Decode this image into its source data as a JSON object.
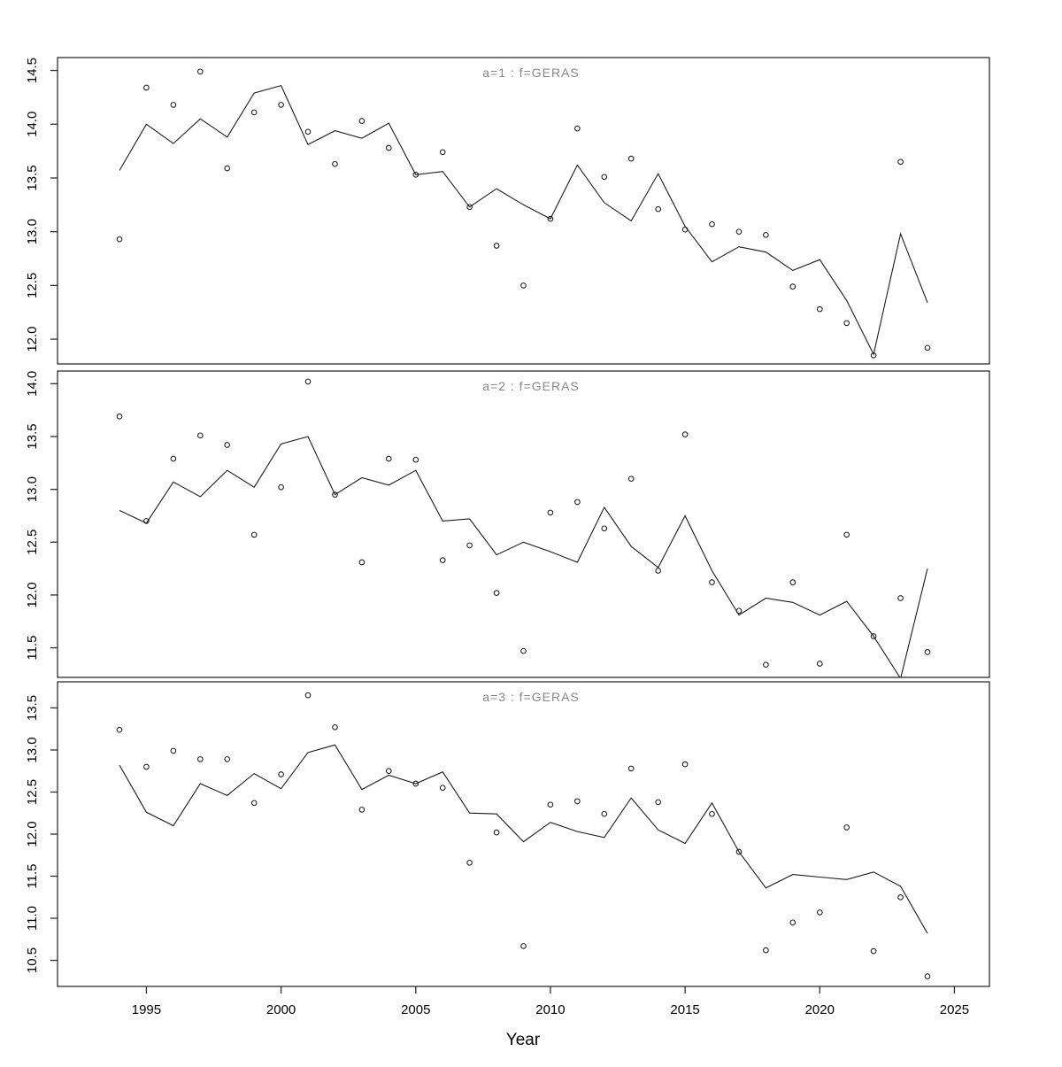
{
  "chart_data": {
    "type": "line",
    "layout_hint": "three vertically stacked panels sharing one x axis, open-circle observations with fitted line, R-style plot",
    "xlabel": "Year",
    "xlim": [
      1991.7,
      2026.3
    ],
    "xticks": [
      1995,
      2000,
      2005,
      2010,
      2015,
      2020,
      2025
    ],
    "point_marker": "open-circle",
    "grid": "off",
    "x": [
      1994,
      1995,
      1996,
      1997,
      1998,
      1999,
      2000,
      2001,
      2002,
      2003,
      2004,
      2005,
      2006,
      2007,
      2008,
      2009,
      2010,
      2011,
      2012,
      2013,
      2014,
      2015,
      2016,
      2017,
      2018,
      2019,
      2020,
      2021,
      2022,
      2023,
      2024
    ],
    "panels": [
      {
        "title": "a=1 : f=GERAS",
        "ylim": [
          11.77,
          14.62
        ],
        "yticks": [
          12.0,
          12.5,
          13.0,
          13.5,
          14.0,
          14.5
        ],
        "series": [
          {
            "name": "observed-points",
            "type": "scatter",
            "values": [
              12.93,
              14.34,
              14.18,
              14.49,
              13.59,
              14.11,
              14.18,
              13.93,
              13.63,
              14.03,
              13.78,
              13.53,
              13.74,
              13.23,
              12.87,
              12.5,
              13.12,
              13.96,
              13.51,
              13.68,
              13.21,
              13.02,
              13.07,
              13.0,
              12.97,
              12.49,
              12.28,
              12.15,
              11.85,
              13.65,
              11.92
            ]
          },
          {
            "name": "fitted-line",
            "type": "line",
            "values": [
              13.57,
              14.0,
              13.82,
              14.05,
              13.88,
              14.29,
              14.36,
              13.81,
              13.94,
              13.87,
              14.01,
              13.53,
              13.56,
              13.23,
              13.4,
              13.25,
              13.12,
              13.62,
              13.27,
              13.1,
              13.54,
              13.05,
              12.72,
              12.86,
              12.81,
              12.64,
              12.74,
              12.36,
              11.86,
              12.98,
              12.34
            ]
          }
        ]
      },
      {
        "title": "a=2 : f=GERAS",
        "ylim": [
          11.22,
          14.12
        ],
        "yticks": [
          11.5,
          12.0,
          12.5,
          13.0,
          13.5,
          14.0
        ],
        "series": [
          {
            "name": "observed-points",
            "type": "scatter",
            "values": [
              13.69,
              12.7,
              13.29,
              13.51,
              13.42,
              12.57,
              13.02,
              14.02,
              12.95,
              12.31,
              13.29,
              13.28,
              12.33,
              12.47,
              12.02,
              11.47,
              12.78,
              12.88,
              12.63,
              13.1,
              12.23,
              13.52,
              12.12,
              11.85,
              11.34,
              12.12,
              11.35,
              12.57,
              11.61,
              11.97,
              11.46
            ]
          },
          {
            "name": "fitted-line",
            "type": "line",
            "values": [
              12.8,
              12.68,
              13.07,
              12.93,
              13.18,
              13.02,
              13.43,
              13.5,
              12.95,
              13.11,
              13.04,
              13.18,
              12.7,
              12.72,
              12.38,
              12.5,
              12.41,
              12.31,
              12.83,
              12.46,
              12.26,
              12.75,
              12.23,
              11.81,
              11.97,
              11.93,
              11.81,
              11.94,
              11.61,
              11.21,
              12.25
            ]
          }
        ]
      },
      {
        "title": "a=3 : f=GERAS",
        "ylim": [
          10.19,
          13.81
        ],
        "yticks": [
          10.5,
          11.0,
          11.5,
          12.0,
          12.5,
          13.0,
          13.5
        ],
        "series": [
          {
            "name": "observed-points",
            "type": "scatter",
            "values": [
              13.24,
              12.8,
              12.99,
              12.89,
              12.89,
              12.37,
              12.71,
              13.65,
              13.27,
              12.29,
              12.75,
              12.6,
              12.55,
              11.66,
              12.02,
              10.67,
              12.35,
              12.39,
              12.24,
              12.78,
              12.38,
              12.83,
              12.24,
              11.79,
              10.62,
              10.95,
              11.07,
              12.08,
              10.61,
              11.25,
              10.31
            ]
          },
          {
            "name": "fitted-line",
            "type": "line",
            "values": [
              12.82,
              12.26,
              12.1,
              12.6,
              12.46,
              12.72,
              12.54,
              12.97,
              13.06,
              12.53,
              12.7,
              12.6,
              12.74,
              12.25,
              12.24,
              11.91,
              12.14,
              12.03,
              11.96,
              12.43,
              12.05,
              11.89,
              12.37,
              11.79,
              11.36,
              11.52,
              11.49,
              11.46,
              11.55,
              11.38,
              10.82
            ]
          }
        ]
      }
    ],
    "colors": {
      "line": "#1a1a1a",
      "points": "#1a1a1a",
      "panel_border": "#2e2e2e",
      "tick": "#2e2e2e",
      "tick_label": "#000000",
      "title": "#888888",
      "axis_label": "#000000",
      "background": "#ffffff"
    }
  }
}
